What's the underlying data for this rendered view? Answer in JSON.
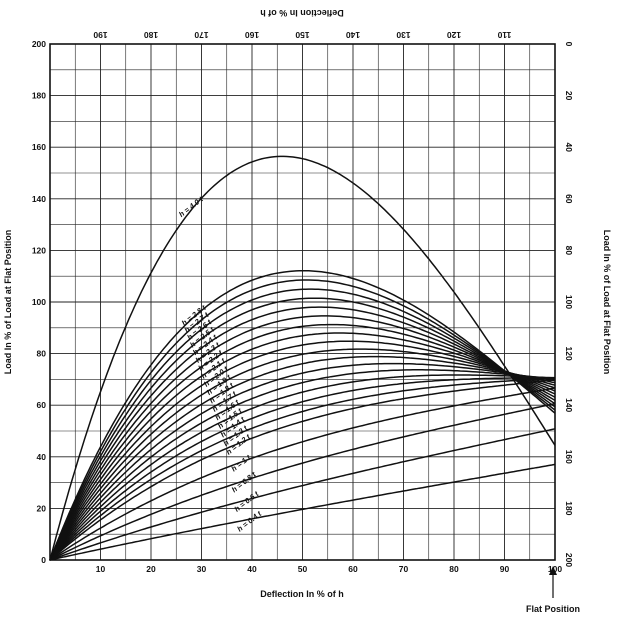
{
  "chart_data": {
    "type": "line",
    "title": "",
    "xlabel": "Deflection In % of h",
    "ylabel": "Load In % of Load at Flat Position",
    "x2label": "Deflection In % of h",
    "y2label": "Load In % of Load at Flat Position",
    "annotation": "Flat Position",
    "xlim": [
      0,
      100
    ],
    "ylim": [
      0,
      200
    ],
    "x_ticks": [
      "10",
      "20",
      "30",
      "40",
      "50",
      "60",
      "70",
      "80",
      "90",
      "100"
    ],
    "y_ticks": [
      "0",
      "20",
      "40",
      "60",
      "80",
      "100",
      "120",
      "140",
      "160",
      "180",
      "200"
    ],
    "x2_ticks": [
      "190",
      "180",
      "170",
      "160",
      "150",
      "140",
      "130",
      "120",
      "110"
    ],
    "y2_ticks": [
      "0",
      "20",
      "40",
      "60",
      "80",
      "100",
      "120",
      "140",
      "160",
      "180",
      "200"
    ],
    "grid": true,
    "series": [
      {
        "name": "h = 4.0 t",
        "ratio": 4.0
      },
      {
        "name": "h = 2.8 t",
        "ratio": 2.8
      },
      {
        "name": "h = 2.7 t",
        "ratio": 2.7
      },
      {
        "name": "h = 2.6 t",
        "ratio": 2.6
      },
      {
        "name": "h = 2.5 t",
        "ratio": 2.5
      },
      {
        "name": "h = 2.4 t",
        "ratio": 2.4
      },
      {
        "name": "h = 2.3 t",
        "ratio": 2.3
      },
      {
        "name": "h = 2.2 t",
        "ratio": 2.2
      },
      {
        "name": "h = 2.1 t",
        "ratio": 2.1
      },
      {
        "name": "h = 2.0 t",
        "ratio": 2.0
      },
      {
        "name": "h = 1.9 t",
        "ratio": 1.9
      },
      {
        "name": "h = 1.8 t",
        "ratio": 1.8
      },
      {
        "name": "h = 1.7 t",
        "ratio": 1.7
      },
      {
        "name": "h = 1.6 t",
        "ratio": 1.6
      },
      {
        "name": "h = 1.5 t",
        "ratio": 1.5
      },
      {
        "name": "h = 1.4 t",
        "ratio": 1.4
      },
      {
        "name": "h = 1.3 t",
        "ratio": 1.3
      },
      {
        "name": "h = 1.2 t",
        "ratio": 1.2
      },
      {
        "name": "h = 1 t",
        "ratio": 1.0
      },
      {
        "name": "h = 0.8 t",
        "ratio": 0.8
      },
      {
        "name": "h = 0.6 t",
        "ratio": 0.6
      },
      {
        "name": "h = 0.4 t",
        "ratio": 0.4
      }
    ]
  }
}
